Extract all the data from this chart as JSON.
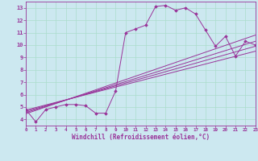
{
  "title": "",
  "xlabel": "Windchill (Refroidissement éolien,°C)",
  "ylabel": "",
  "background_color": "#cce8f0",
  "grid_color": "#aaddcc",
  "line_color": "#993399",
  "marker_color": "#993399",
  "xlim": [
    0,
    23
  ],
  "ylim": [
    3.5,
    13.5
  ],
  "xticks": [
    0,
    1,
    2,
    3,
    4,
    5,
    6,
    7,
    8,
    9,
    10,
    11,
    12,
    13,
    14,
    15,
    16,
    17,
    18,
    19,
    20,
    21,
    22,
    23
  ],
  "yticks": [
    4,
    5,
    6,
    7,
    8,
    9,
    10,
    11,
    12,
    13
  ],
  "main_series_x": [
    0,
    1,
    2,
    3,
    4,
    5,
    6,
    7,
    8,
    9,
    10,
    11,
    12,
    13,
    14,
    15,
    16,
    17,
    18,
    19,
    20,
    21,
    22,
    23
  ],
  "main_series_y": [
    4.8,
    3.8,
    4.8,
    5.0,
    5.2,
    5.2,
    5.1,
    4.5,
    4.5,
    6.3,
    11.0,
    11.3,
    11.6,
    13.1,
    13.2,
    12.8,
    13.0,
    12.5,
    11.2,
    9.9,
    10.7,
    9.1,
    10.3,
    10.0
  ],
  "reg_lines": [
    {
      "x": [
        0,
        23
      ],
      "y": [
        4.75,
        9.5
      ]
    },
    {
      "x": [
        0,
        23
      ],
      "y": [
        4.65,
        9.9
      ]
    },
    {
      "x": [
        0,
        23
      ],
      "y": [
        4.55,
        10.3
      ]
    },
    {
      "x": [
        0,
        23
      ],
      "y": [
        4.45,
        10.8
      ]
    }
  ]
}
